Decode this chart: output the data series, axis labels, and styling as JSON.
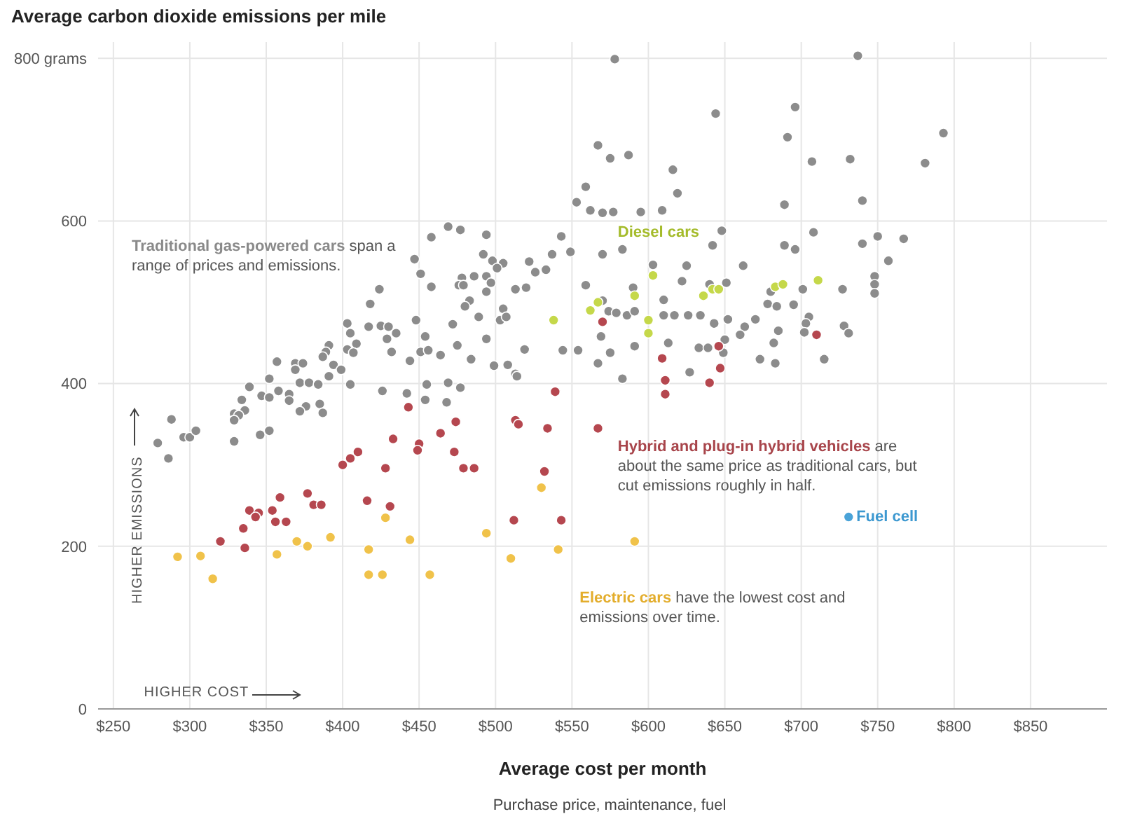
{
  "chart_data": {
    "type": "scatter",
    "title": "Average carbon dioxide emissions per mile",
    "xlabel": "Average cost per month",
    "xlim": [
      240,
      900
    ],
    "xticks": [
      {
        "value": 250,
        "label": "$250"
      },
      {
        "value": 300,
        "label": "$300"
      },
      {
        "value": 350,
        "label": "$350"
      },
      {
        "value": 400,
        "label": "$400"
      },
      {
        "value": 450,
        "label": "$450"
      },
      {
        "value": 500,
        "label": "$500"
      },
      {
        "value": 550,
        "label": "$550"
      },
      {
        "value": 600,
        "label": "$600"
      },
      {
        "value": 650,
        "label": "$650"
      },
      {
        "value": 700,
        "label": "$700"
      },
      {
        "value": 750,
        "label": "$750"
      },
      {
        "value": 800,
        "label": "$800"
      },
      {
        "value": 850,
        "label": "$850"
      }
    ],
    "ylim": [
      0,
      820
    ],
    "yticks": [
      0,
      200,
      400,
      600,
      {
        "value": 800,
        "label": "800 grams"
      }
    ],
    "grid": true,
    "legend": false,
    "marker": "circle",
    "annotations": [
      "span a range of prices and emissions.",
      "are about the same price as traditional cars, but cut emissions roughly in half.",
      "have the lowest cost and emissions over time.",
      "Purchase price, maintenance, fuel",
      "HIGHER EMISSIONS",
      "HIGHER COST"
    ],
    "series": [
      {
        "name": "Traditional gas-powered cars",
        "color": "#8c8c8c",
        "x": [
          737,
          793,
          578,
          696,
          644,
          691,
          567,
          575,
          587,
          616,
          707,
          732,
          781,
          619,
          689,
          740,
          562,
          570,
          577,
          595,
          609,
          648,
          708,
          750,
          767,
          570,
          583,
          642,
          689,
          696,
          740,
          757,
          603,
          625,
          662,
          748,
          748,
          748,
          727,
          701,
          680,
          651,
          640,
          622,
          590,
          610,
          678,
          684,
          695,
          570,
          574,
          579,
          586,
          591,
          610,
          617,
          626,
          634,
          643,
          652,
          663,
          670,
          705,
          703,
          728,
          731,
          702,
          682,
          685,
          660,
          650,
          649,
          613,
          633,
          639,
          627,
          591,
          575,
          569,
          715,
          683,
          673,
          583,
          567,
          559,
          559,
          553,
          469,
          477,
          458,
          494,
          543,
          549,
          537,
          492,
          498,
          505,
          501,
          522,
          526,
          533,
          447,
          451,
          458,
          478,
          486,
          476,
          479,
          494,
          497,
          494,
          513,
          520,
          424,
          418,
          483,
          480,
          505,
          503,
          507,
          489,
          472,
          448,
          417,
          425,
          430,
          435,
          429,
          454,
          432,
          451,
          456,
          464,
          475,
          444,
          484,
          494,
          519,
          403,
          405,
          409,
          403,
          407,
          391,
          389,
          387,
          394,
          399,
          357,
          369,
          374,
          369,
          352,
          391,
          372,
          378,
          384,
          405,
          499,
          508,
          513,
          544,
          554,
          339,
          347,
          352,
          358,
          365,
          365,
          334,
          336,
          329,
          332,
          329,
          376,
          372,
          385,
          387,
          426,
          442,
          454,
          468,
          455,
          469,
          477,
          288,
          279,
          286,
          296,
          300,
          304,
          329,
          346,
          352,
          514
        ],
        "values": [
          803,
          708,
          799,
          740,
          732,
          703,
          693,
          677,
          681,
          663,
          673,
          676,
          671,
          634,
          620,
          625,
          613,
          610,
          611,
          611,
          613,
          588,
          586,
          581,
          578,
          559,
          565,
          570,
          570,
          565,
          572,
          551,
          546,
          545,
          545,
          532,
          522,
          511,
          516,
          516,
          513,
          524,
          522,
          526,
          518,
          503,
          498,
          495,
          497,
          502,
          489,
          487,
          484,
          489,
          484,
          484,
          484,
          484,
          474,
          479,
          470,
          479,
          482,
          474,
          471,
          462,
          463,
          450,
          465,
          460,
          454,
          438,
          450,
          444,
          444,
          414,
          446,
          438,
          458,
          430,
          425,
          430,
          406,
          425,
          521,
          642,
          623,
          593,
          589,
          580,
          583,
          581,
          562,
          559,
          559,
          551,
          548,
          542,
          550,
          537,
          540,
          553,
          535,
          519,
          530,
          532,
          521,
          521,
          532,
          524,
          513,
          516,
          518,
          516,
          498,
          502,
          495,
          492,
          478,
          482,
          482,
          473,
          478,
          470,
          471,
          470,
          462,
          455,
          458,
          439,
          439,
          441,
          435,
          447,
          428,
          430,
          455,
          442,
          474,
          462,
          449,
          442,
          438,
          447,
          439,
          433,
          423,
          417,
          427,
          425,
          425,
          417,
          406,
          409,
          401,
          401,
          399,
          399,
          422,
          423,
          412,
          441,
          441,
          396,
          385,
          383,
          391,
          387,
          379,
          380,
          367,
          363,
          361,
          355,
          372,
          366,
          375,
          364,
          391,
          388,
          380,
          377,
          399,
          401,
          395,
          356,
          327,
          308,
          334,
          334,
          342,
          329,
          337,
          342,
          409
        ]
      },
      {
        "name": "Diesel cars",
        "color": "#c5d84a",
        "x": [
          603,
          567,
          562,
          591,
          600,
          600,
          636,
          642,
          646,
          683,
          688,
          711,
          538
        ],
        "values": [
          533,
          500,
          490,
          508,
          478,
          462,
          508,
          516,
          516,
          519,
          522,
          527,
          478
        ]
      },
      {
        "name": "Hybrid and plug-in hybrid vehicles",
        "color": "#b5474f",
        "x": [
          570,
          710,
          646,
          609,
          647,
          611,
          640,
          611,
          567,
          539,
          443,
          474,
          513,
          515,
          534,
          464,
          433,
          450,
          449,
          473,
          410,
          405,
          400,
          428,
          479,
          486,
          532,
          377,
          359,
          381,
          386,
          416,
          431,
          339,
          345,
          343,
          354,
          356,
          363,
          335,
          320,
          336,
          512,
          543
        ],
        "values": [
          476,
          460,
          446,
          431,
          419,
          404,
          401,
          387,
          345,
          390,
          371,
          353,
          355,
          350,
          345,
          339,
          332,
          326,
          318,
          316,
          316,
          308,
          300,
          296,
          296,
          296,
          292,
          265,
          260,
          251,
          251,
          256,
          249,
          244,
          241,
          236,
          244,
          230,
          230,
          222,
          206,
          198,
          232,
          232
        ]
      },
      {
        "name": "Electric cars",
        "color": "#f0c24a",
        "x": [
          292,
          307,
          315,
          357,
          370,
          377,
          392,
          417,
          417,
          426,
          457,
          444,
          428,
          494,
          510,
          530,
          541,
          591
        ],
        "values": [
          187,
          188,
          160,
          190,
          206,
          200,
          211,
          196,
          165,
          165,
          165,
          208,
          235,
          216,
          185,
          272,
          196,
          206
        ]
      },
      {
        "name": "Fuel cell",
        "color": "#4aa3d8",
        "x": [
          731
        ],
        "values": [
          236
        ]
      }
    ]
  }
}
